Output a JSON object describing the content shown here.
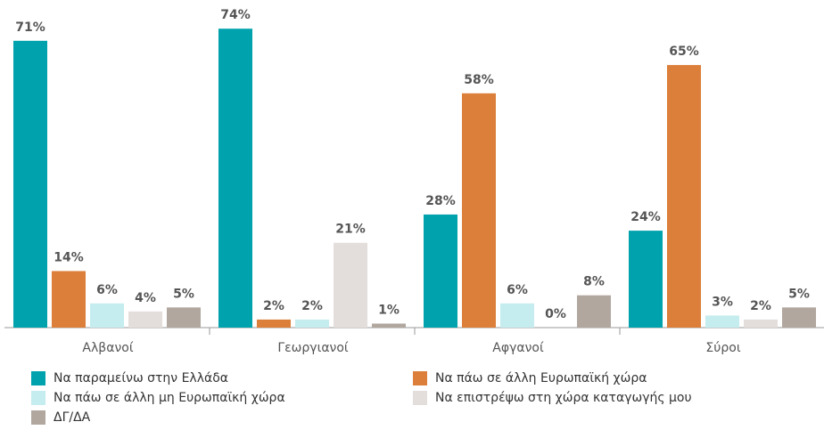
{
  "chart_data": {
    "type": "bar",
    "categories": [
      "Αλβανοί",
      "Γεωργιανοί",
      "Αφγανοί",
      "Σύροι"
    ],
    "ylim": [
      0,
      80
    ],
    "series": [
      {
        "name": "Να παραμείνω στην Ελλάδα",
        "color": "#00a3ad",
        "values": [
          71,
          74,
          28,
          24
        ],
        "value_labels": [
          "71%",
          "74%",
          "28%",
          "24%"
        ]
      },
      {
        "name": "Να πάω σε άλλη Ευρωπαϊκή χώρα",
        "color": "#dc7f3a",
        "values": [
          14,
          2,
          58,
          65
        ],
        "value_labels": [
          "14%",
          "2%",
          "58%",
          "65%"
        ]
      },
      {
        "name": "Να πάω σε άλλη μη Ευρωπαϊκή χώρα",
        "color": "#c5ecee",
        "values": [
          6,
          2,
          6,
          3
        ],
        "value_labels": [
          "6%",
          "2%",
          "6%",
          "3%"
        ]
      },
      {
        "name": "Να επιστρέψω στη χώρα καταγωγής μου",
        "color": "#e3dedb",
        "values": [
          4,
          21,
          0,
          2
        ],
        "value_labels": [
          "4%",
          "21%",
          "0%",
          "2%"
        ]
      },
      {
        "name": "ΔΓ/ΔΑ",
        "color": "#b1a79f",
        "values": [
          5,
          1,
          8,
          5
        ],
        "value_labels": [
          "5%",
          "1%",
          "8%",
          "5%"
        ]
      }
    ]
  }
}
